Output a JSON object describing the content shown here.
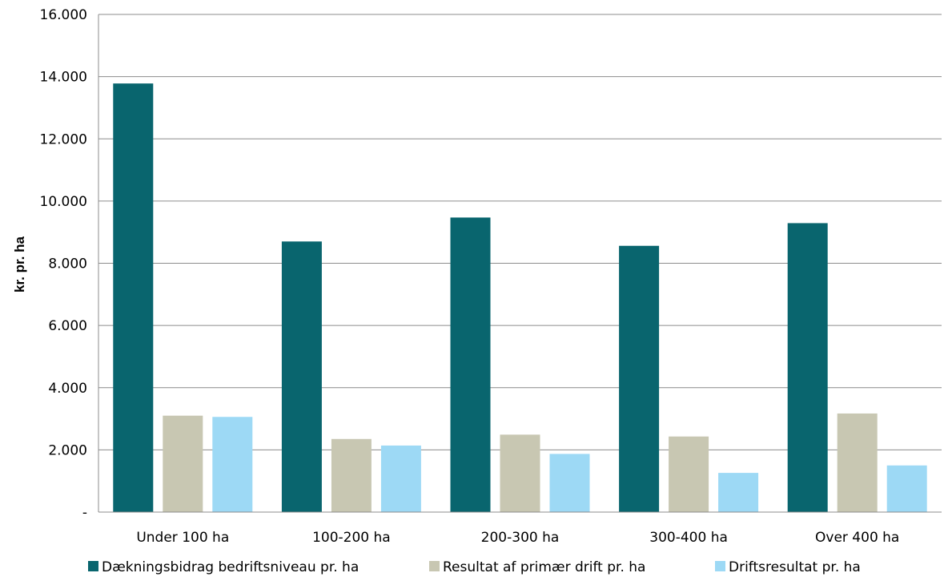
{
  "chart_data": {
    "type": "bar",
    "title": "",
    "ylabel": "kr. pr. ha",
    "xlabel": "",
    "categories": [
      "Under 100 ha",
      "100-200 ha",
      "200-300 ha",
      "300-400 ha",
      "Over 400 ha"
    ],
    "ylim": [
      0,
      16000
    ],
    "yticks": [
      0,
      2000,
      4000,
      6000,
      8000,
      10000,
      12000,
      14000,
      16000
    ],
    "ytick_labels": [
      "-",
      "2.000",
      "4.000",
      "6.000",
      "8.000",
      "10.000",
      "12.000",
      "14.000",
      "16.000"
    ],
    "grid": true,
    "legend_position": "bottom",
    "series": [
      {
        "name": "Dækningsbidrag bedriftsniveau pr. ha",
        "color": "#09656e",
        "values": [
          13780,
          8700,
          9470,
          8560,
          9290
        ]
      },
      {
        "name": "Resultat af primær drift pr. ha",
        "color": "#c8c7b2",
        "values": [
          3100,
          2350,
          2490,
          2430,
          3170
        ]
      },
      {
        "name": "Driftsresultat pr. ha",
        "color": "#9dd9f5",
        "values": [
          3060,
          2140,
          1870,
          1260,
          1500
        ]
      }
    ]
  }
}
